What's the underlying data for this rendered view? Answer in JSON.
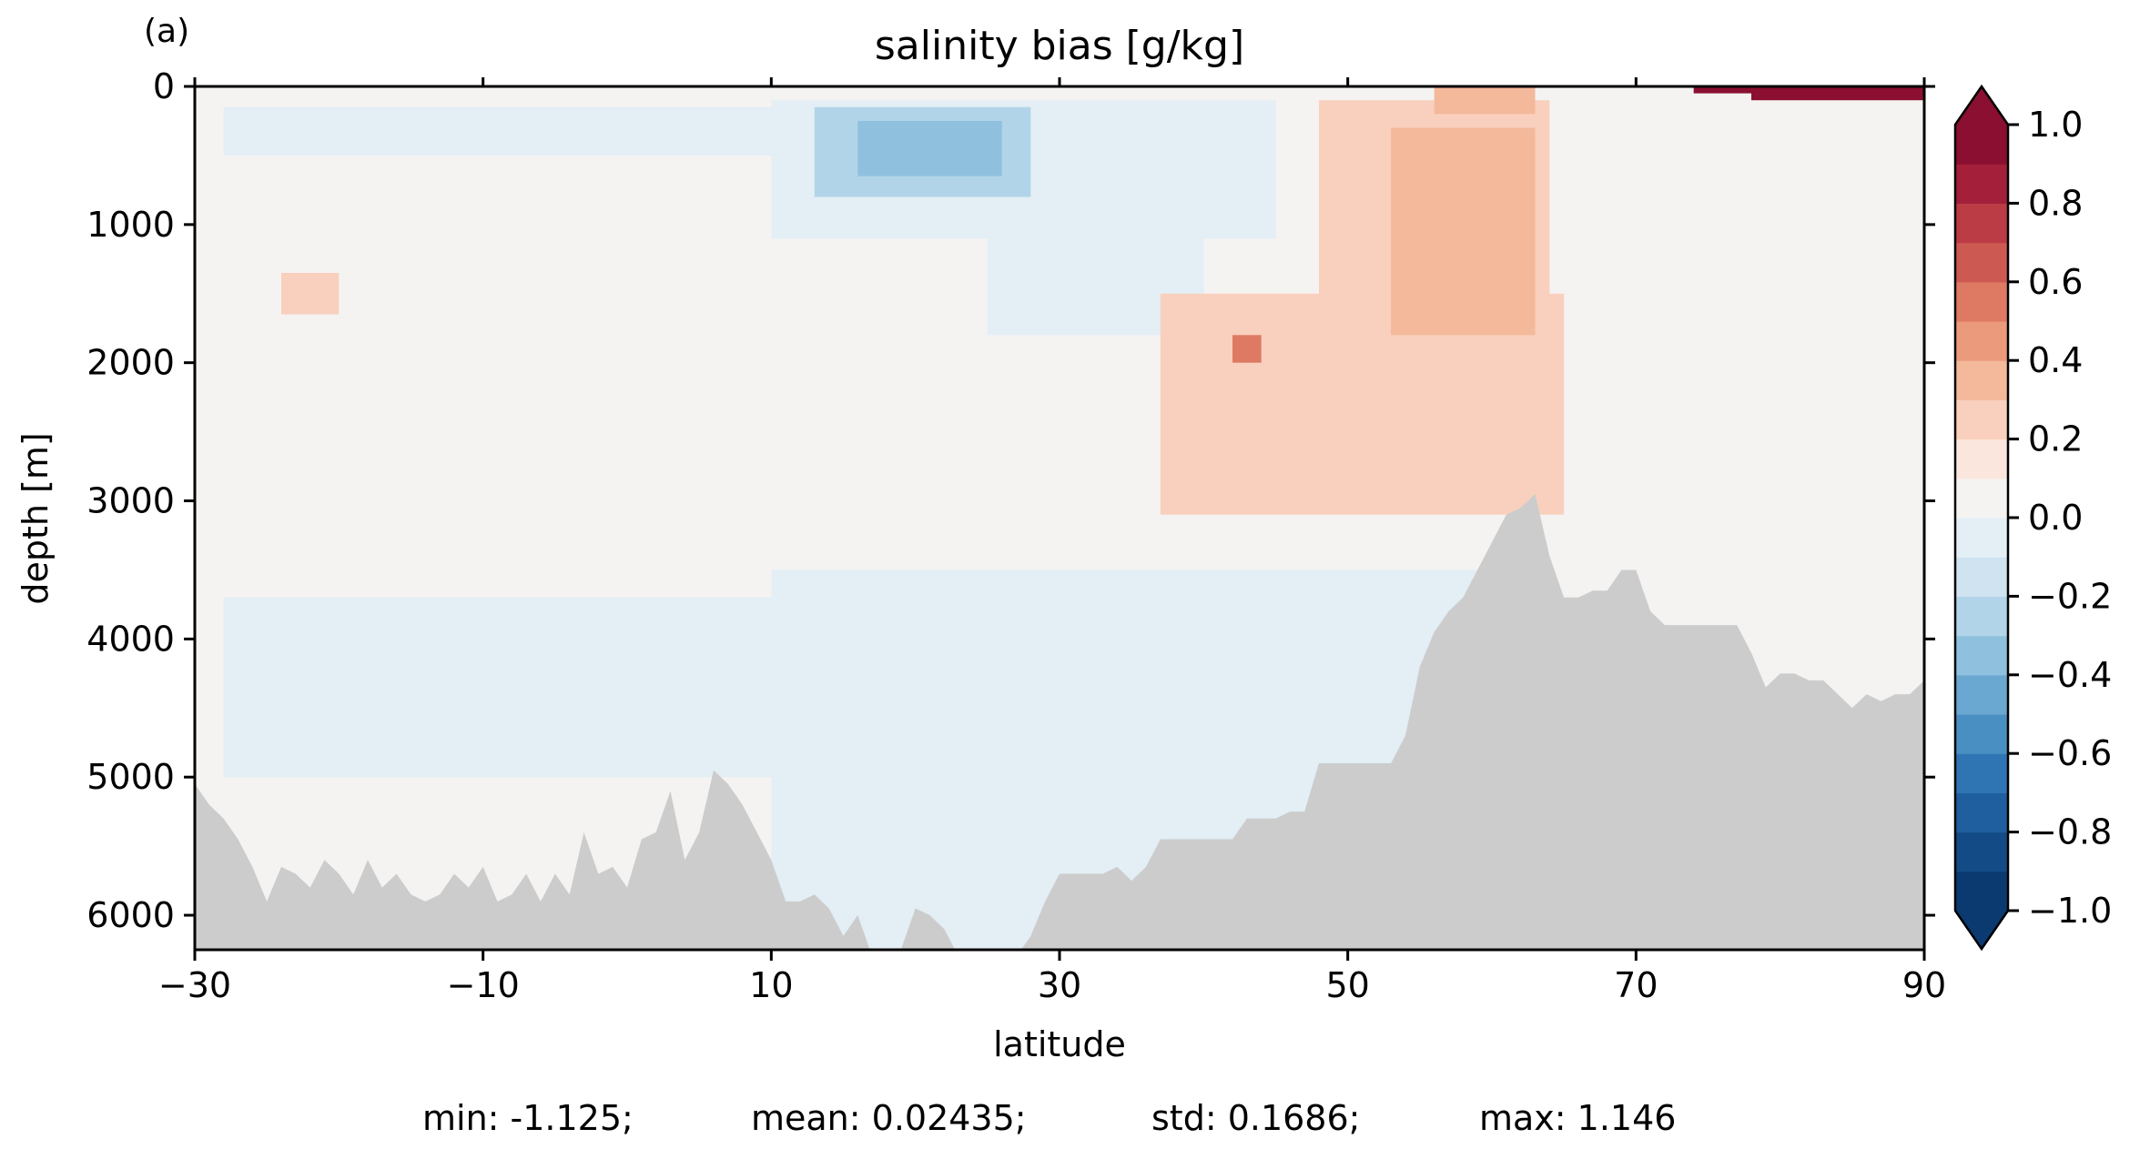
{
  "panel_label": "(a)",
  "chart_data": {
    "type": "heatmap",
    "title": "salinity bias [g/kg]",
    "xlabel": "latitude",
    "ylabel": "depth [m]",
    "xlim": [
      -30,
      90
    ],
    "ylim": [
      6250,
      0
    ],
    "y_inverted": true,
    "x_ticks": [
      "−30",
      "−10",
      "10",
      "30",
      "50",
      "70",
      "90"
    ],
    "x_tick_values": [
      -30,
      -10,
      10,
      30,
      50,
      70,
      90
    ],
    "y_ticks": [
      "0",
      "1000",
      "2000",
      "3000",
      "4000",
      "5000",
      "6000"
    ],
    "y_tick_values": [
      0,
      1000,
      2000,
      3000,
      4000,
      5000,
      6000
    ],
    "grid": false,
    "colorbar": {
      "position": "right",
      "colormap": "RdBu_r",
      "extend": "both",
      "vmin": -1.0,
      "vmax": 1.0,
      "levels": [
        -1.0,
        -0.9,
        -0.8,
        -0.7,
        -0.6,
        -0.5,
        -0.4,
        -0.3,
        -0.2,
        -0.1,
        0.0,
        0.1,
        0.2,
        0.3,
        0.4,
        0.5,
        0.6,
        0.7,
        0.8,
        0.9,
        1.0
      ],
      "tick_values": [
        1.0,
        0.8,
        0.6,
        0.4,
        0.2,
        0.0,
        -0.2,
        -0.4,
        -0.6,
        -0.8,
        -1.0
      ],
      "tick_labels": [
        "1.0",
        "0.8",
        "0.6",
        "0.4",
        "0.2",
        "0.0",
        "−0.2",
        "−0.4",
        "−0.6",
        "−0.8",
        "−1.0"
      ],
      "colors": [
        "#0b3a70",
        "#134b87",
        "#1f5f9f",
        "#2f75b4",
        "#4a8fc2",
        "#6aa8d1",
        "#8fc1de",
        "#b1d4e8",
        "#cfe3f0",
        "#e3eef5",
        "#f4f3f2",
        "#fbe6dd",
        "#f9d0bd",
        "#f4b89b",
        "#ec9a7c",
        "#de7a63",
        "#cd5a52",
        "#bb3c45",
        "#a4203a",
        "#8a0f30"
      ]
    },
    "bathymetry_mask": {
      "color": "#cccccc",
      "latitudes": [
        -30,
        -29,
        -28,
        -27,
        -26,
        -25,
        -24,
        -23,
        -22,
        -21,
        -20,
        -19,
        -18,
        -17,
        -16,
        -15,
        -14,
        -13,
        -12,
        -11,
        -10,
        -9,
        -8,
        -7,
        -6,
        -5,
        -4,
        -3,
        -2,
        -1,
        0,
        1,
        2,
        3,
        4,
        5,
        6,
        7,
        8,
        9,
        10,
        11,
        12,
        13,
        14,
        15,
        16,
        17,
        18,
        19,
        20,
        21,
        22,
        23,
        24,
        25,
        26,
        27,
        28,
        29,
        30,
        31,
        32,
        33,
        34,
        35,
        36,
        37,
        38,
        39,
        40,
        41,
        42,
        43,
        44,
        45,
        46,
        47,
        48,
        49,
        50,
        51,
        52,
        53,
        54,
        55,
        56,
        57,
        58,
        59,
        60,
        61,
        62,
        63,
        64,
        65,
        66,
        67,
        68,
        69,
        70,
        71,
        72,
        73,
        74,
        75,
        76,
        77,
        78,
        79,
        80,
        81,
        82,
        83,
        84,
        85,
        86,
        87,
        88,
        89,
        90
      ],
      "depths": [
        5050,
        5200,
        5300,
        5450,
        5650,
        5900,
        5650,
        5700,
        5800,
        5600,
        5700,
        5850,
        5600,
        5800,
        5700,
        5850,
        5900,
        5850,
        5700,
        5800,
        5650,
        5900,
        5850,
        5700,
        5900,
        5700,
        5850,
        5400,
        5700,
        5650,
        5800,
        5450,
        5400,
        5100,
        5600,
        5400,
        4950,
        5050,
        5200,
        5400,
        5600,
        5900,
        5900,
        5850,
        5950,
        6150,
        6000,
        6300,
        6300,
        6250,
        5950,
        6000,
        6100,
        6300,
        6250,
        6300,
        6250,
        6300,
        6150,
        5900,
        5700,
        5700,
        5700,
        5700,
        5650,
        5750,
        5650,
        5450,
        5450,
        5450,
        5450,
        5450,
        5450,
        5300,
        5300,
        5300,
        5250,
        5250,
        4900,
        4900,
        4900,
        4900,
        4900,
        4900,
        4700,
        4200,
        3950,
        3800,
        3700,
        3500,
        3300,
        3100,
        3050,
        2950,
        3400,
        3700,
        3700,
        3650,
        3650,
        3500,
        3500,
        3800,
        3900,
        3900,
        3900,
        3900,
        3900,
        3900,
        4100,
        4350,
        4250,
        4250,
        4300,
        4300,
        4400,
        4500,
        4400,
        4450,
        4400,
        4400,
        4300
      ]
    },
    "field_regions": [
      {
        "lat": [
          -30,
          90
        ],
        "depth": [
          0,
          6250
        ],
        "value": 0.05
      },
      {
        "lat": [
          -28,
          50
        ],
        "depth": [
          3700,
          5000
        ],
        "value": -0.05
      },
      {
        "lat": [
          10,
          62
        ],
        "depth": [
          3500,
          6250
        ],
        "value": -0.05
      },
      {
        "lat": [
          -28,
          10
        ],
        "depth": [
          150,
          500
        ],
        "value": -0.1
      },
      {
        "lat": [
          10,
          45
        ],
        "depth": [
          100,
          1100
        ],
        "value": -0.1
      },
      {
        "lat": [
          13,
          28
        ],
        "depth": [
          150,
          800
        ],
        "value": -0.3
      },
      {
        "lat": [
          16,
          26
        ],
        "depth": [
          250,
          650
        ],
        "value": -0.4
      },
      {
        "lat": [
          25,
          40
        ],
        "depth": [
          900,
          1800
        ],
        "value": -0.05
      },
      {
        "lat": [
          37,
          65
        ],
        "depth": [
          1500,
          3100
        ],
        "value": 0.2
      },
      {
        "lat": [
          48,
          64
        ],
        "depth": [
          100,
          2500
        ],
        "value": 0.25
      },
      {
        "lat": [
          53,
          63
        ],
        "depth": [
          300,
          1800
        ],
        "value": 0.35
      },
      {
        "lat": [
          42,
          44
        ],
        "depth": [
          1800,
          2000
        ],
        "value": 0.5
      },
      {
        "lat": [
          -24,
          -20
        ],
        "depth": [
          1350,
          1650
        ],
        "value": 0.2
      },
      {
        "lat": [
          56,
          63
        ],
        "depth": [
          0,
          200
        ],
        "value": 0.3
      },
      {
        "lat": [
          74,
          90
        ],
        "depth": [
          0,
          50
        ],
        "value": 0.9
      },
      {
        "lat": [
          78,
          90
        ],
        "depth": [
          0,
          100
        ],
        "value": 1.0
      },
      {
        "lat": [
          66,
          90
        ],
        "depth": [
          700,
          3500
        ],
        "value": 0.05
      }
    ],
    "stats": {
      "min": "min: -1.125;",
      "mean": "mean: 0.02435;",
      "std": "std: 0.1686;",
      "max": "max: 1.146"
    }
  }
}
